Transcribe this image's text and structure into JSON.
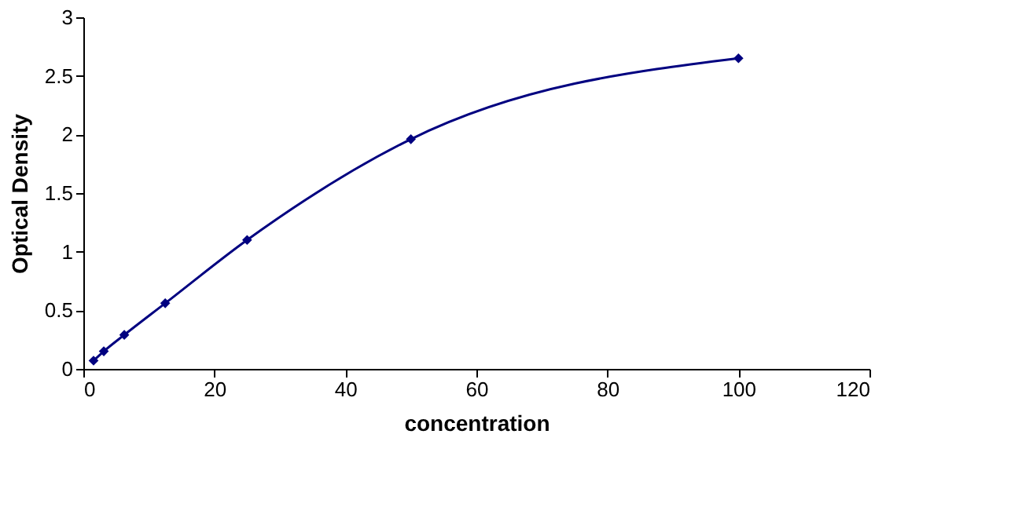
{
  "chart_data": {
    "type": "line",
    "xlabel": "concentration",
    "ylabel": "Optical Density",
    "x": [
      1.56,
      3.125,
      6.25,
      12.5,
      25,
      50,
      100
    ],
    "series": [
      {
        "color": "#000080",
        "values": [
          0.07,
          0.15,
          0.29,
          0.56,
          1.1,
          1.96,
          2.65
        ]
      }
    ],
    "xlim": [
      0,
      120
    ],
    "xticks": [
      0,
      20,
      40,
      60,
      80,
      100,
      120
    ],
    "ylim": [
      0,
      3
    ],
    "yticks": [
      0,
      0.5,
      1,
      1.5,
      2,
      2.5,
      3
    ],
    "grid": false,
    "marker": "diamond",
    "line_style": "solid"
  }
}
